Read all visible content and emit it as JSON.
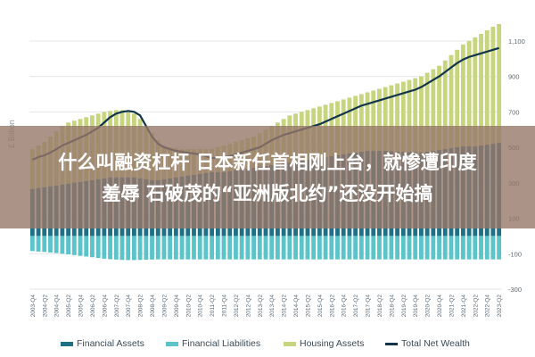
{
  "chart_data": {
    "type": "bar",
    "xlabel": "",
    "ylabel": "£ Billion",
    "ylim": [
      -300,
      1200
    ],
    "yticks": [
      -300,
      -100,
      100,
      300,
      500,
      700,
      900,
      1100
    ],
    "ytick_labels": [
      "-300",
      "-100",
      "100",
      "300",
      "500",
      "700",
      "900",
      "1,100"
    ],
    "grid": true,
    "legend_position": "bottom",
    "x": [
      "2003-Q4",
      "2004-Q1",
      "2004-Q2",
      "2004-Q3",
      "2004-Q4",
      "2005-Q1",
      "2005-Q2",
      "2005-Q3",
      "2005-Q4",
      "2006-Q1",
      "2006-Q2",
      "2006-Q3",
      "2006-Q4",
      "2007-Q1",
      "2007-Q2",
      "2007-Q3",
      "2007-Q4",
      "2008-Q1",
      "2008-Q2",
      "2008-Q3",
      "2008-Q4",
      "2009-Q1",
      "2009-Q2",
      "2009-Q3",
      "2009-Q4",
      "2010-Q1",
      "2010-Q2",
      "2010-Q3",
      "2010-Q4",
      "2011-Q1",
      "2011-Q2",
      "2011-Q3",
      "2011-Q4",
      "2012-Q1",
      "2012-Q2",
      "2012-Q3",
      "2012-Q4",
      "2013-Q1",
      "2013-Q2",
      "2013-Q3",
      "2013-Q4",
      "2014-Q1",
      "2014-Q2",
      "2014-Q3",
      "2014-Q4",
      "2015-Q1",
      "2015-Q2",
      "2015-Q3",
      "2015-Q4",
      "2016-Q1",
      "2016-Q2",
      "2016-Q3",
      "2016-Q4",
      "2017-Q1",
      "2017-Q2",
      "2017-Q3",
      "2017-Q4",
      "2018-Q1",
      "2018-Q2",
      "2018-Q3",
      "2018-Q4",
      "2019-Q1",
      "2019-Q2",
      "2019-Q3",
      "2019-Q4",
      "2020-Q1",
      "2020-Q2",
      "2020-Q3",
      "2020-Q4",
      "2021-Q1",
      "2021-Q2",
      "2021-Q3",
      "2021-Q4",
      "2022-Q1",
      "2022-Q2",
      "2022-Q3",
      "2022-Q4",
      "2023-Q1",
      "2023-Q2"
    ],
    "series": [
      {
        "name": "Financial Assets",
        "kind": "bar",
        "color": "#1f6f86",
        "values": [
          265,
          270,
          275,
          280,
          285,
          290,
          295,
          300,
          305,
          310,
          315,
          320,
          325,
          330,
          330,
          330,
          330,
          330,
          325,
          320,
          315,
          315,
          320,
          325,
          330,
          335,
          340,
          345,
          350,
          355,
          360,
          360,
          360,
          365,
          370,
          375,
          380,
          385,
          390,
          395,
          400,
          405,
          410,
          415,
          420,
          425,
          430,
          435,
          440,
          445,
          450,
          455,
          460,
          465,
          470,
          475,
          480,
          480,
          480,
          480,
          478,
          476,
          475,
          474,
          473,
          472,
          475,
          480,
          485,
          490,
          495,
          500,
          505,
          505,
          505,
          510,
          515,
          520,
          525
        ]
      },
      {
        "name": "Financial Liabilities",
        "kind": "bar",
        "color": "#5bc4ca",
        "values": [
          -85,
          -88,
          -90,
          -93,
          -96,
          -100,
          -104,
          -108,
          -112,
          -116,
          -120,
          -124,
          -128,
          -131,
          -133,
          -135,
          -136,
          -136,
          -135,
          -134,
          -133,
          -132,
          -132,
          -132,
          -132,
          -132,
          -132,
          -132,
          -132,
          -132,
          -132,
          -132,
          -132,
          -132,
          -132,
          -132,
          -132,
          -132,
          -132,
          -132,
          -132,
          -132,
          -132,
          -132,
          -132,
          -132,
          -132,
          -132,
          -132,
          -132,
          -132,
          -132,
          -132,
          -132,
          -132,
          -132,
          -132,
          -132,
          -132,
          -132,
          -132,
          -132,
          -132,
          -132,
          -132,
          -132,
          -132,
          -132,
          -132,
          -132,
          -132,
          -132,
          -132,
          -132,
          -132,
          -132,
          -132,
          -132,
          -132
        ]
      },
      {
        "name": "Housing Assets",
        "kind": "bar",
        "color": "#c7d67e",
        "values": [
          490,
          510,
          530,
          560,
          590,
          620,
          640,
          650,
          660,
          670,
          680,
          690,
          700,
          705,
          710,
          710,
          705,
          690,
          660,
          620,
          580,
          540,
          510,
          500,
          495,
          490,
          490,
          490,
          490,
          490,
          490,
          500,
          510,
          520,
          530,
          540,
          550,
          560,
          580,
          600,
          620,
          640,
          660,
          680,
          690,
          700,
          710,
          720,
          730,
          740,
          750,
          760,
          770,
          780,
          790,
          800,
          810,
          820,
          830,
          840,
          850,
          860,
          870,
          880,
          890,
          900,
          920,
          940,
          960,
          990,
          1020,
          1050,
          1080,
          1100,
          1120,
          1140,
          1160,
          1180,
          1195
        ]
      },
      {
        "name": "Total Net Wealth",
        "kind": "line",
        "color": "#13354a",
        "values": [
          430,
          445,
          455,
          470,
          490,
          510,
          525,
          540,
          555,
          570,
          590,
          610,
          640,
          670,
          690,
          700,
          705,
          700,
          680,
          620,
          560,
          520,
          500,
          490,
          480,
          475,
          470,
          465,
          460,
          450,
          440,
          440,
          445,
          450,
          460,
          470,
          480,
          490,
          500,
          520,
          540,
          555,
          570,
          580,
          590,
          600,
          610,
          620,
          630,
          645,
          660,
          675,
          690,
          705,
          720,
          735,
          745,
          755,
          765,
          775,
          785,
          795,
          805,
          815,
          825,
          840,
          860,
          880,
          900,
          925,
          950,
          975,
          995,
          1010,
          1020,
          1030,
          1040,
          1050,
          1060
        ]
      }
    ]
  },
  "headline": {
    "line1": "什么叫融资杠杆 日本新任首相刚上台，就惨遭印度",
    "line2": "羞辱 石破茂的“亚洲版北约”还没开始搞"
  }
}
